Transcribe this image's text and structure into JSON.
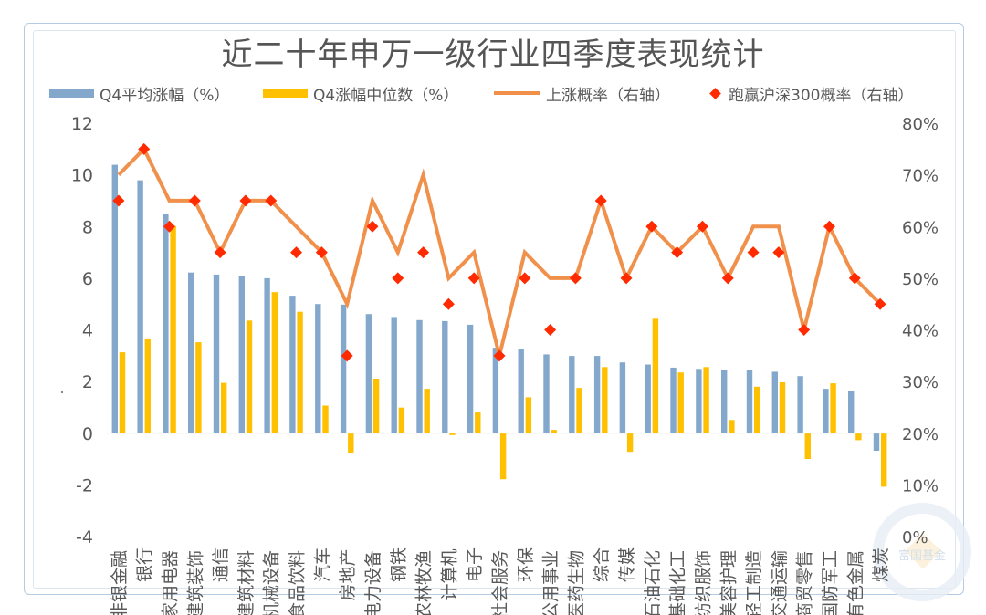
{
  "chart_data": {
    "type": "bar",
    "title": "近二十年申万一级行业四季度表现统计",
    "categories": [
      "非银金融",
      "银行",
      "家用电器",
      "建筑装饰",
      "通信",
      "建筑材料",
      "机械设备",
      "食品饮料",
      "汽车",
      "房地产",
      "电力设备",
      "钢铁",
      "农林牧渔",
      "计算机",
      "电子",
      "社会服务",
      "环保",
      "公用事业",
      "医药生物",
      "综合",
      "传媒",
      "石油石化",
      "基础化工",
      "纺织服饰",
      "美容护理",
      "轻工制造",
      "交通运输",
      "商贸零售",
      "国防军工",
      "有色金属",
      "煤炭"
    ],
    "series": [
      {
        "name": "Q4平均涨幅（%）",
        "type": "bar",
        "axis": "left",
        "color": "#84a8cc",
        "values": [
          10.4,
          9.8,
          8.5,
          6.23,
          6.15,
          6.1,
          6.01,
          5.33,
          5.01,
          4.99,
          4.62,
          4.51,
          4.39,
          4.35,
          4.21,
          3.32,
          3.27,
          3.06,
          3.0,
          3.0,
          2.75,
          2.67,
          2.55,
          2.5,
          2.44,
          2.45,
          2.39,
          2.22,
          1.73,
          1.65,
          -0.69
        ]
      },
      {
        "name": "Q4涨幅中位数（%）",
        "type": "bar",
        "axis": "left",
        "color": "#ffc000",
        "values": [
          3.14,
          3.68,
          8.03,
          3.53,
          1.96,
          4.37,
          5.47,
          4.71,
          1.08,
          -0.79,
          2.12,
          1.0,
          1.73,
          -0.08,
          0.81,
          -1.79,
          1.4,
          0.14,
          1.76,
          2.57,
          -0.73,
          4.44,
          2.36,
          2.57,
          0.52,
          1.81,
          1.98,
          -1.01,
          1.94,
          -0.28,
          -2.08
        ]
      },
      {
        "name": "上涨概率（右轴）",
        "type": "line",
        "axis": "right",
        "color": "#f0904a",
        "values": [
          70,
          75,
          65,
          65,
          55,
          65,
          65,
          60,
          55,
          45,
          65,
          55,
          70,
          50,
          55,
          35,
          55,
          50,
          50,
          65,
          50,
          60,
          55,
          60,
          50,
          60,
          60,
          40,
          60,
          50,
          45
        ]
      },
      {
        "name": "跑赢沪深300概率（右轴）",
        "type": "scatter",
        "axis": "right",
        "color": "#ff2a00",
        "values": [
          65,
          75,
          60,
          65,
          55,
          65,
          65,
          55,
          55,
          35,
          60,
          50,
          55,
          45,
          50,
          35,
          50,
          40,
          50,
          65,
          50,
          60,
          55,
          60,
          50,
          55,
          55,
          40,
          60,
          50,
          45
        ]
      }
    ],
    "ylim": [
      -4,
      12
    ],
    "yticks": [
      "12",
      "10",
      "8",
      "6",
      "4",
      "2",
      "0",
      "-2",
      "-4"
    ],
    "ytick_values": [
      12,
      10,
      8,
      6,
      4,
      2,
      0,
      -2,
      -4
    ],
    "y2lim": [
      0,
      80
    ],
    "y2ticks": [
      "80%",
      "70%",
      "60%",
      "50%",
      "40%",
      "30%",
      "20%",
      "10%",
      "0%"
    ],
    "y2tick_values": [
      80,
      70,
      60,
      50,
      40,
      30,
      20,
      10,
      0
    ],
    "legend_position": "top",
    "grid": false
  },
  "legend": {
    "items": [
      {
        "label": "Q4平均涨幅（%）",
        "color": "#84a8cc"
      },
      {
        "label": "Q4涨幅中位数（%）",
        "color": "#ffc000"
      },
      {
        "label": "上涨概率（右轴）",
        "color": "#f0904a"
      },
      {
        "label": "跑赢沪深300概率（右轴）",
        "color": "#ff2a00"
      }
    ]
  },
  "watermark": {
    "text": "富国基金"
  }
}
